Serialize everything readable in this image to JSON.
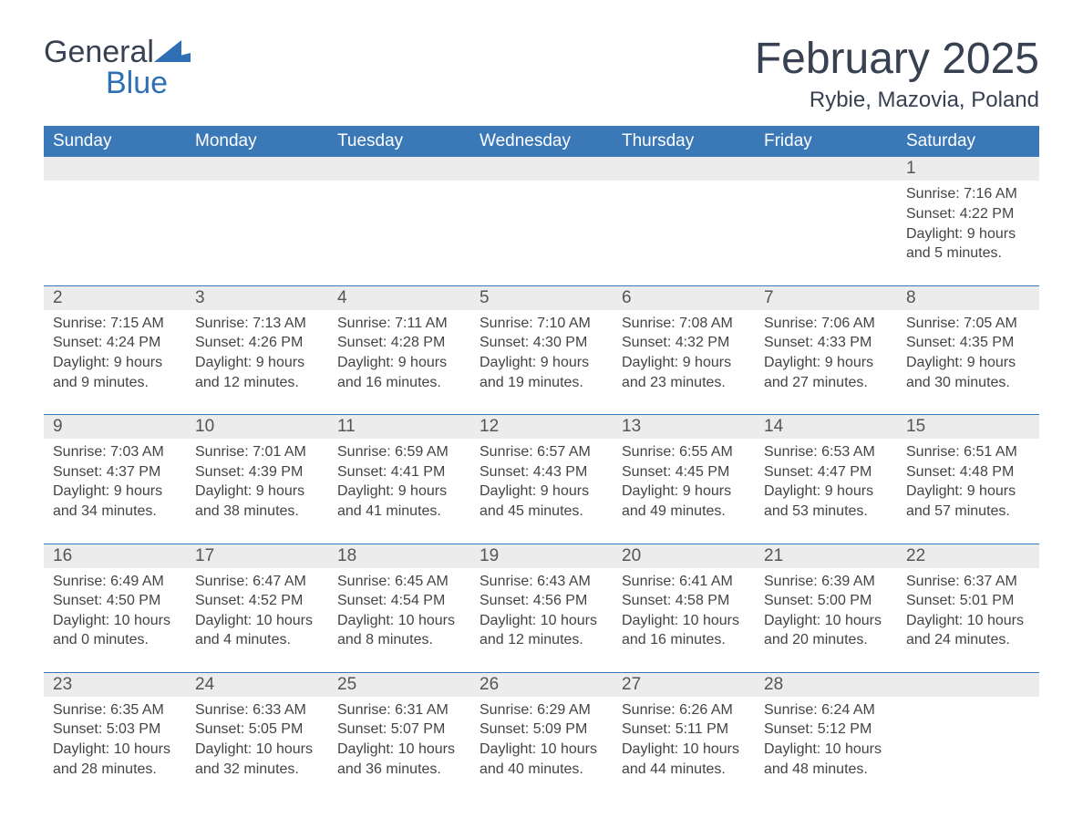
{
  "logo": {
    "word1": "General",
    "word2": "Blue"
  },
  "title": "February 2025",
  "location": "Rybie, Mazovia, Poland",
  "colors": {
    "header_bg": "#3b78b8",
    "header_text": "#ffffff",
    "daynum_bg": "#ececec",
    "sep_line": "#3b78b8",
    "body_text": "#444444",
    "title_text": "#374151",
    "logo_blue": "#2f6fb6",
    "page_bg": "#ffffff"
  },
  "dow": [
    "Sunday",
    "Monday",
    "Tuesday",
    "Wednesday",
    "Thursday",
    "Friday",
    "Saturday"
  ],
  "weeks": [
    [
      null,
      null,
      null,
      null,
      null,
      null,
      {
        "n": "1",
        "sr": "Sunrise: 7:16 AM",
        "ss": "Sunset: 4:22 PM",
        "d1": "Daylight: 9 hours",
        "d2": "and 5 minutes."
      }
    ],
    [
      {
        "n": "2",
        "sr": "Sunrise: 7:15 AM",
        "ss": "Sunset: 4:24 PM",
        "d1": "Daylight: 9 hours",
        "d2": "and 9 minutes."
      },
      {
        "n": "3",
        "sr": "Sunrise: 7:13 AM",
        "ss": "Sunset: 4:26 PM",
        "d1": "Daylight: 9 hours",
        "d2": "and 12 minutes."
      },
      {
        "n": "4",
        "sr": "Sunrise: 7:11 AM",
        "ss": "Sunset: 4:28 PM",
        "d1": "Daylight: 9 hours",
        "d2": "and 16 minutes."
      },
      {
        "n": "5",
        "sr": "Sunrise: 7:10 AM",
        "ss": "Sunset: 4:30 PM",
        "d1": "Daylight: 9 hours",
        "d2": "and 19 minutes."
      },
      {
        "n": "6",
        "sr": "Sunrise: 7:08 AM",
        "ss": "Sunset: 4:32 PM",
        "d1": "Daylight: 9 hours",
        "d2": "and 23 minutes."
      },
      {
        "n": "7",
        "sr": "Sunrise: 7:06 AM",
        "ss": "Sunset: 4:33 PM",
        "d1": "Daylight: 9 hours",
        "d2": "and 27 minutes."
      },
      {
        "n": "8",
        "sr": "Sunrise: 7:05 AM",
        "ss": "Sunset: 4:35 PM",
        "d1": "Daylight: 9 hours",
        "d2": "and 30 minutes."
      }
    ],
    [
      {
        "n": "9",
        "sr": "Sunrise: 7:03 AM",
        "ss": "Sunset: 4:37 PM",
        "d1": "Daylight: 9 hours",
        "d2": "and 34 minutes."
      },
      {
        "n": "10",
        "sr": "Sunrise: 7:01 AM",
        "ss": "Sunset: 4:39 PM",
        "d1": "Daylight: 9 hours",
        "d2": "and 38 minutes."
      },
      {
        "n": "11",
        "sr": "Sunrise: 6:59 AM",
        "ss": "Sunset: 4:41 PM",
        "d1": "Daylight: 9 hours",
        "d2": "and 41 minutes."
      },
      {
        "n": "12",
        "sr": "Sunrise: 6:57 AM",
        "ss": "Sunset: 4:43 PM",
        "d1": "Daylight: 9 hours",
        "d2": "and 45 minutes."
      },
      {
        "n": "13",
        "sr": "Sunrise: 6:55 AM",
        "ss": "Sunset: 4:45 PM",
        "d1": "Daylight: 9 hours",
        "d2": "and 49 minutes."
      },
      {
        "n": "14",
        "sr": "Sunrise: 6:53 AM",
        "ss": "Sunset: 4:47 PM",
        "d1": "Daylight: 9 hours",
        "d2": "and 53 minutes."
      },
      {
        "n": "15",
        "sr": "Sunrise: 6:51 AM",
        "ss": "Sunset: 4:48 PM",
        "d1": "Daylight: 9 hours",
        "d2": "and 57 minutes."
      }
    ],
    [
      {
        "n": "16",
        "sr": "Sunrise: 6:49 AM",
        "ss": "Sunset: 4:50 PM",
        "d1": "Daylight: 10 hours",
        "d2": "and 0 minutes."
      },
      {
        "n": "17",
        "sr": "Sunrise: 6:47 AM",
        "ss": "Sunset: 4:52 PM",
        "d1": "Daylight: 10 hours",
        "d2": "and 4 minutes."
      },
      {
        "n": "18",
        "sr": "Sunrise: 6:45 AM",
        "ss": "Sunset: 4:54 PM",
        "d1": "Daylight: 10 hours",
        "d2": "and 8 minutes."
      },
      {
        "n": "19",
        "sr": "Sunrise: 6:43 AM",
        "ss": "Sunset: 4:56 PM",
        "d1": "Daylight: 10 hours",
        "d2": "and 12 minutes."
      },
      {
        "n": "20",
        "sr": "Sunrise: 6:41 AM",
        "ss": "Sunset: 4:58 PM",
        "d1": "Daylight: 10 hours",
        "d2": "and 16 minutes."
      },
      {
        "n": "21",
        "sr": "Sunrise: 6:39 AM",
        "ss": "Sunset: 5:00 PM",
        "d1": "Daylight: 10 hours",
        "d2": "and 20 minutes."
      },
      {
        "n": "22",
        "sr": "Sunrise: 6:37 AM",
        "ss": "Sunset: 5:01 PM",
        "d1": "Daylight: 10 hours",
        "d2": "and 24 minutes."
      }
    ],
    [
      {
        "n": "23",
        "sr": "Sunrise: 6:35 AM",
        "ss": "Sunset: 5:03 PM",
        "d1": "Daylight: 10 hours",
        "d2": "and 28 minutes."
      },
      {
        "n": "24",
        "sr": "Sunrise: 6:33 AM",
        "ss": "Sunset: 5:05 PM",
        "d1": "Daylight: 10 hours",
        "d2": "and 32 minutes."
      },
      {
        "n": "25",
        "sr": "Sunrise: 6:31 AM",
        "ss": "Sunset: 5:07 PM",
        "d1": "Daylight: 10 hours",
        "d2": "and 36 minutes."
      },
      {
        "n": "26",
        "sr": "Sunrise: 6:29 AM",
        "ss": "Sunset: 5:09 PM",
        "d1": "Daylight: 10 hours",
        "d2": "and 40 minutes."
      },
      {
        "n": "27",
        "sr": "Sunrise: 6:26 AM",
        "ss": "Sunset: 5:11 PM",
        "d1": "Daylight: 10 hours",
        "d2": "and 44 minutes."
      },
      {
        "n": "28",
        "sr": "Sunrise: 6:24 AM",
        "ss": "Sunset: 5:12 PM",
        "d1": "Daylight: 10 hours",
        "d2": "and 48 minutes."
      },
      null
    ]
  ]
}
